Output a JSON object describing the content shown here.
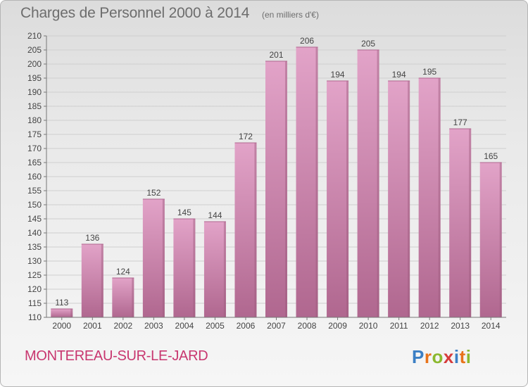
{
  "header": {
    "title": "Charges de Personnel 2000 à 2014",
    "subtitle": "(en milliers d'€)"
  },
  "footer": {
    "town": "MONTEREAU-SUR-LE-JARD",
    "logo": "Proxiti",
    "logo_colors": [
      "#3b7fc4",
      "#e8731a",
      "#8bb82e",
      "#d63b3b",
      "#3b7fc4",
      "#e8731a",
      "#8bb82e"
    ]
  },
  "colors": {
    "bar_top": "#e2a3c8",
    "bar_bottom": "#b0678f",
    "bar_shade": "#9c5a7d",
    "grid": "#cfcfcf",
    "text": "#444444",
    "town": "#c8366f"
  },
  "chart_data": {
    "type": "bar",
    "title": "Charges de Personnel 2000 à 2014",
    "subtitle": "(en milliers d'€)",
    "categories": [
      "2000",
      "2001",
      "2002",
      "2003",
      "2004",
      "2005",
      "2006",
      "2007",
      "2008",
      "2009",
      "2010",
      "2011",
      "2012",
      "2013",
      "2014"
    ],
    "values": [
      113,
      136,
      124,
      152,
      145,
      144,
      172,
      201,
      206,
      194,
      205,
      194,
      195,
      177,
      165
    ],
    "ylim": [
      110,
      210
    ],
    "yticks": [
      110,
      115,
      120,
      125,
      130,
      135,
      140,
      145,
      150,
      155,
      160,
      165,
      170,
      175,
      180,
      185,
      190,
      195,
      200,
      205,
      210
    ],
    "grid": true,
    "data_labels": true
  }
}
